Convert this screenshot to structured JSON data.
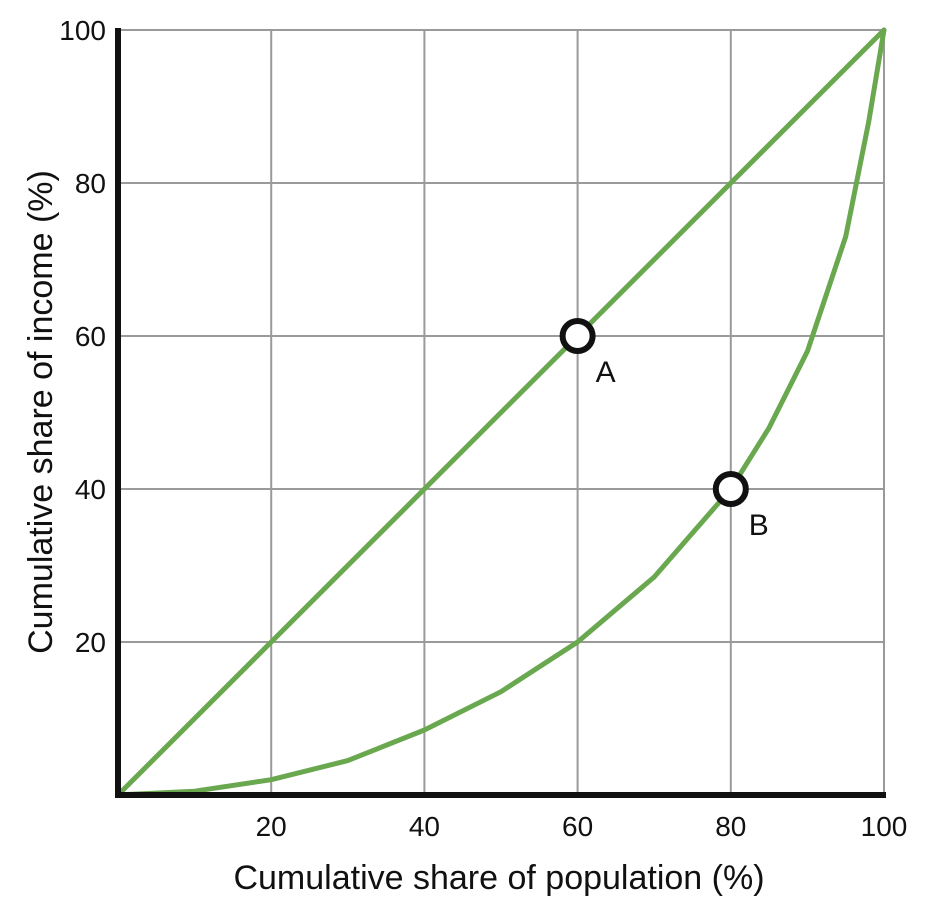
{
  "chart_data": {
    "type": "line",
    "title": "",
    "xlabel": "Cumulative share of population (%)",
    "ylabel": "Cumulative share of income (%)",
    "xlim": [
      0,
      100
    ],
    "ylim": [
      0,
      100
    ],
    "grid": true,
    "x_ticks": [
      20,
      40,
      60,
      80,
      100
    ],
    "y_ticks": [
      20,
      40,
      60,
      80,
      100
    ],
    "x_tick_labels": [
      "20",
      "40",
      "60",
      "80",
      "100"
    ],
    "y_tick_labels": [
      "20",
      "40",
      "60",
      "80",
      "100"
    ],
    "line_color": "#6aa84f",
    "series": [
      {
        "x": [
          0,
          100
        ],
        "y": [
          0,
          100
        ]
      },
      {
        "x": [
          0,
          10,
          20,
          30,
          40,
          50,
          60,
          70,
          80,
          85,
          90,
          95,
          98,
          100
        ],
        "y": [
          0,
          0.5,
          2,
          4.5,
          8.5,
          13.5,
          20,
          28.5,
          40,
          48,
          58,
          73,
          88,
          100
        ]
      }
    ],
    "points": [
      {
        "label": "A",
        "x": 60,
        "y": 60
      },
      {
        "label": "B",
        "x": 80,
        "y": 40
      }
    ]
  }
}
